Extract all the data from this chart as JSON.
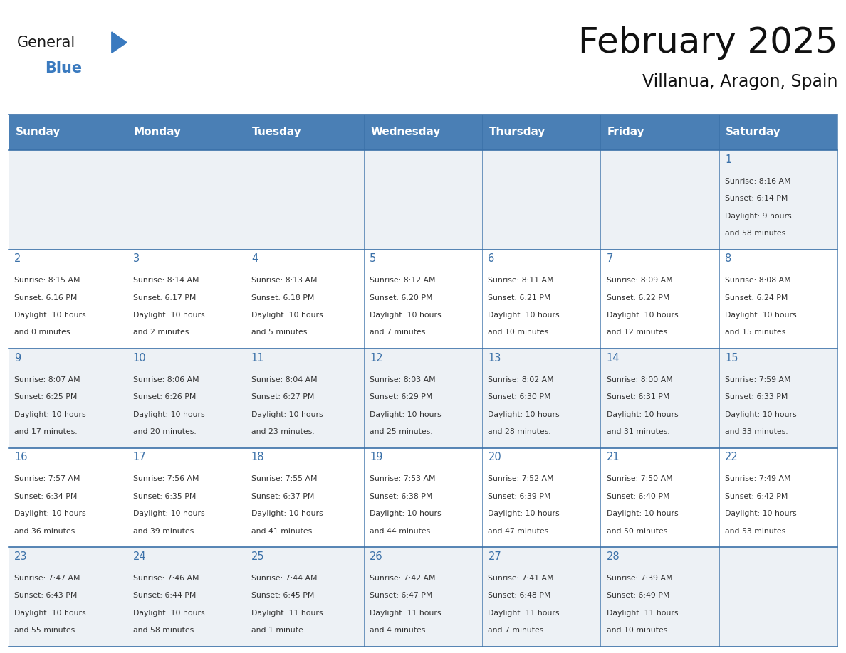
{
  "title": "February 2025",
  "subtitle": "Villanua, Aragon, Spain",
  "header_color": "#4a7fb5",
  "header_text_color": "#ffffff",
  "day_names": [
    "Sunday",
    "Monday",
    "Tuesday",
    "Wednesday",
    "Thursday",
    "Friday",
    "Saturday"
  ],
  "background_color": "#ffffff",
  "cell_bg_light": "#edf1f5",
  "cell_bg_white": "#ffffff",
  "border_color": "#3a70a8",
  "text_color": "#333333",
  "date_color": "#3a70a8",
  "logo_general_color": "#1a1a1a",
  "logo_blue_color": "#3a7abf",
  "calendar_data": [
    [
      null,
      null,
      null,
      null,
      null,
      null,
      {
        "day": 1,
        "sunrise": "8:16 AM",
        "sunset": "6:14 PM",
        "daylight": "9 hours and 58 minutes"
      }
    ],
    [
      {
        "day": 2,
        "sunrise": "8:15 AM",
        "sunset": "6:16 PM",
        "daylight": "10 hours and 0 minutes"
      },
      {
        "day": 3,
        "sunrise": "8:14 AM",
        "sunset": "6:17 PM",
        "daylight": "10 hours and 2 minutes"
      },
      {
        "day": 4,
        "sunrise": "8:13 AM",
        "sunset": "6:18 PM",
        "daylight": "10 hours and 5 minutes"
      },
      {
        "day": 5,
        "sunrise": "8:12 AM",
        "sunset": "6:20 PM",
        "daylight": "10 hours and 7 minutes"
      },
      {
        "day": 6,
        "sunrise": "8:11 AM",
        "sunset": "6:21 PM",
        "daylight": "10 hours and 10 minutes"
      },
      {
        "day": 7,
        "sunrise": "8:09 AM",
        "sunset": "6:22 PM",
        "daylight": "10 hours and 12 minutes"
      },
      {
        "day": 8,
        "sunrise": "8:08 AM",
        "sunset": "6:24 PM",
        "daylight": "10 hours and 15 minutes"
      }
    ],
    [
      {
        "day": 9,
        "sunrise": "8:07 AM",
        "sunset": "6:25 PM",
        "daylight": "10 hours and 17 minutes"
      },
      {
        "day": 10,
        "sunrise": "8:06 AM",
        "sunset": "6:26 PM",
        "daylight": "10 hours and 20 minutes"
      },
      {
        "day": 11,
        "sunrise": "8:04 AM",
        "sunset": "6:27 PM",
        "daylight": "10 hours and 23 minutes"
      },
      {
        "day": 12,
        "sunrise": "8:03 AM",
        "sunset": "6:29 PM",
        "daylight": "10 hours and 25 minutes"
      },
      {
        "day": 13,
        "sunrise": "8:02 AM",
        "sunset": "6:30 PM",
        "daylight": "10 hours and 28 minutes"
      },
      {
        "day": 14,
        "sunrise": "8:00 AM",
        "sunset": "6:31 PM",
        "daylight": "10 hours and 31 minutes"
      },
      {
        "day": 15,
        "sunrise": "7:59 AM",
        "sunset": "6:33 PM",
        "daylight": "10 hours and 33 minutes"
      }
    ],
    [
      {
        "day": 16,
        "sunrise": "7:57 AM",
        "sunset": "6:34 PM",
        "daylight": "10 hours and 36 minutes"
      },
      {
        "day": 17,
        "sunrise": "7:56 AM",
        "sunset": "6:35 PM",
        "daylight": "10 hours and 39 minutes"
      },
      {
        "day": 18,
        "sunrise": "7:55 AM",
        "sunset": "6:37 PM",
        "daylight": "10 hours and 41 minutes"
      },
      {
        "day": 19,
        "sunrise": "7:53 AM",
        "sunset": "6:38 PM",
        "daylight": "10 hours and 44 minutes"
      },
      {
        "day": 20,
        "sunrise": "7:52 AM",
        "sunset": "6:39 PM",
        "daylight": "10 hours and 47 minutes"
      },
      {
        "day": 21,
        "sunrise": "7:50 AM",
        "sunset": "6:40 PM",
        "daylight": "10 hours and 50 minutes"
      },
      {
        "day": 22,
        "sunrise": "7:49 AM",
        "sunset": "6:42 PM",
        "daylight": "10 hours and 53 minutes"
      }
    ],
    [
      {
        "day": 23,
        "sunrise": "7:47 AM",
        "sunset": "6:43 PM",
        "daylight": "10 hours and 55 minutes"
      },
      {
        "day": 24,
        "sunrise": "7:46 AM",
        "sunset": "6:44 PM",
        "daylight": "10 hours and 58 minutes"
      },
      {
        "day": 25,
        "sunrise": "7:44 AM",
        "sunset": "6:45 PM",
        "daylight": "11 hours and 1 minute"
      },
      {
        "day": 26,
        "sunrise": "7:42 AM",
        "sunset": "6:47 PM",
        "daylight": "11 hours and 4 minutes"
      },
      {
        "day": 27,
        "sunrise": "7:41 AM",
        "sunset": "6:48 PM",
        "daylight": "11 hours and 7 minutes"
      },
      {
        "day": 28,
        "sunrise": "7:39 AM",
        "sunset": "6:49 PM",
        "daylight": "11 hours and 10 minutes"
      },
      null
    ]
  ],
  "figsize": [
    11.88,
    9.18
  ],
  "dpi": 100
}
